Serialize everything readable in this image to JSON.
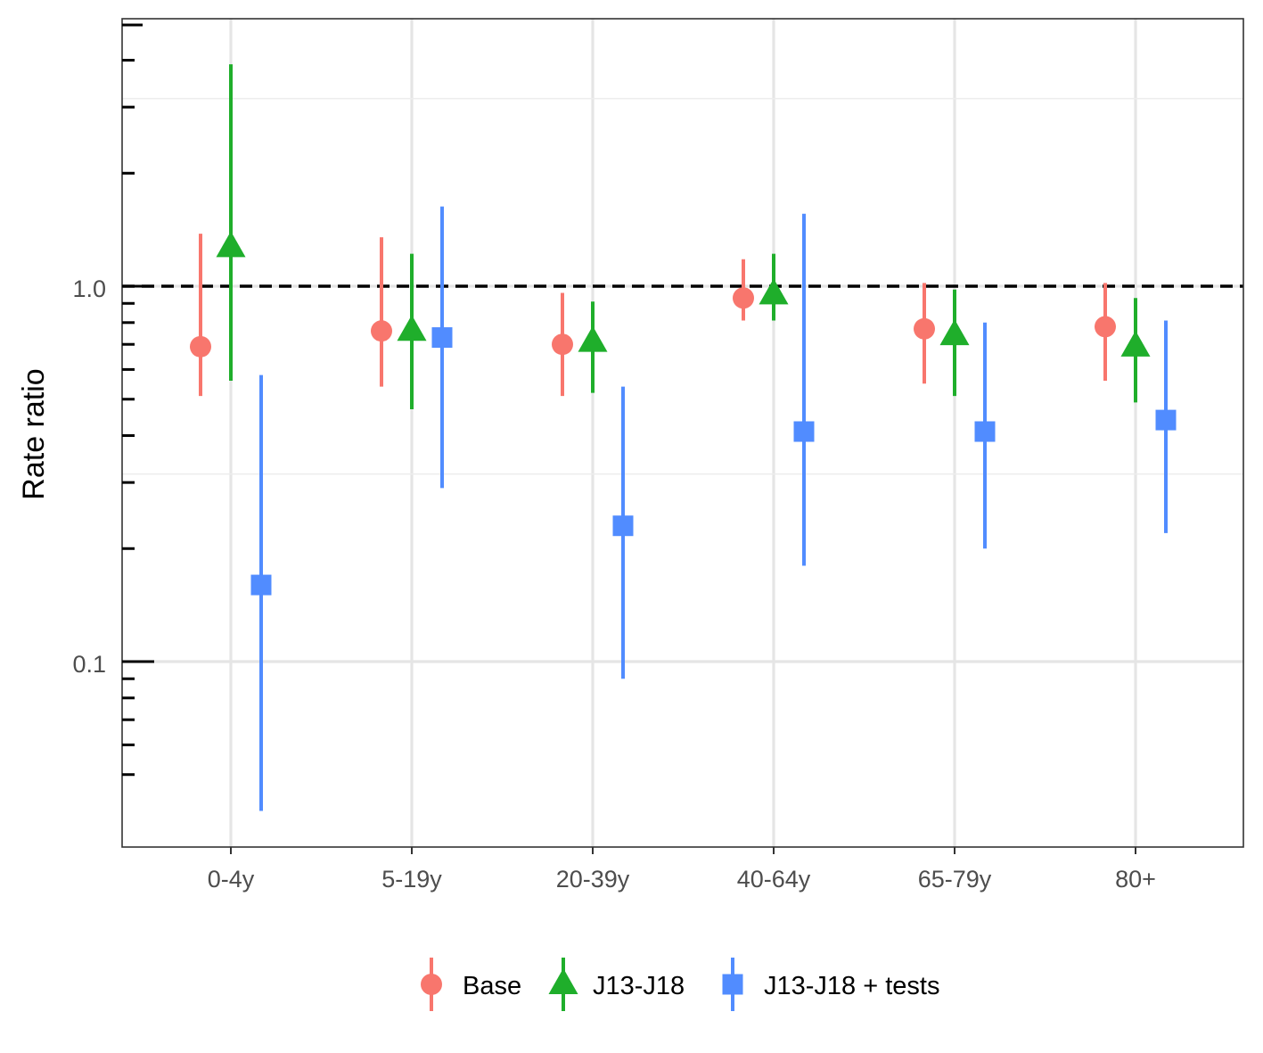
{
  "chart_data": {
    "type": "scatter",
    "subtype": "point-range",
    "title": "",
    "xlabel": "",
    "ylabel": "Rate ratio",
    "y_scale": "log10",
    "ylim": [
      0.045,
      4.6
    ],
    "y_major_ticks": [
      0.1,
      1.0
    ],
    "y_major_tick_labels": [
      "0.1",
      "1.0"
    ],
    "y_minor_ticks": [
      0.05,
      0.06,
      0.07,
      0.08,
      0.09,
      0.2,
      0.3,
      0.4,
      0.5,
      0.6,
      0.7,
      0.8,
      0.9,
      2,
      3,
      4
    ],
    "reference_line": {
      "y": 1.0,
      "style": "dashed",
      "color": "#000000"
    },
    "grid": true,
    "legend": {
      "position": "bottom"
    },
    "categories": [
      "0-4y",
      "5-19y",
      "20-39y",
      "40-64y",
      "65-79y",
      "80+"
    ],
    "series": [
      {
        "name": "Base",
        "color": "#F8766D",
        "shape": "circle",
        "values": [
          0.69,
          0.76,
          0.7,
          0.93,
          0.77,
          0.78
        ],
        "lower": [
          0.51,
          0.54,
          0.51,
          0.81,
          0.55,
          0.56
        ],
        "upper": [
          1.38,
          1.35,
          0.96,
          1.18,
          1.02,
          1.02
        ]
      },
      {
        "name": "J13-J18",
        "color": "#1FAE2B",
        "shape": "triangle",
        "values": [
          1.27,
          0.76,
          0.71,
          0.95,
          0.74,
          0.69
        ],
        "lower": [
          0.56,
          0.47,
          0.52,
          0.81,
          0.51,
          0.49
        ],
        "upper": [
          3.9,
          1.22,
          0.91,
          1.22,
          0.98,
          0.93
        ]
      },
      {
        "name": "J13-J18 + tests",
        "color": "#518CFF",
        "shape": "square",
        "values": [
          0.16,
          0.73,
          0.23,
          0.41,
          0.41,
          0.44
        ],
        "lower": [
          0.04,
          0.29,
          0.09,
          0.18,
          0.2,
          0.22
        ],
        "upper": [
          0.58,
          1.63,
          0.54,
          1.56,
          0.8,
          0.81
        ]
      }
    ]
  }
}
